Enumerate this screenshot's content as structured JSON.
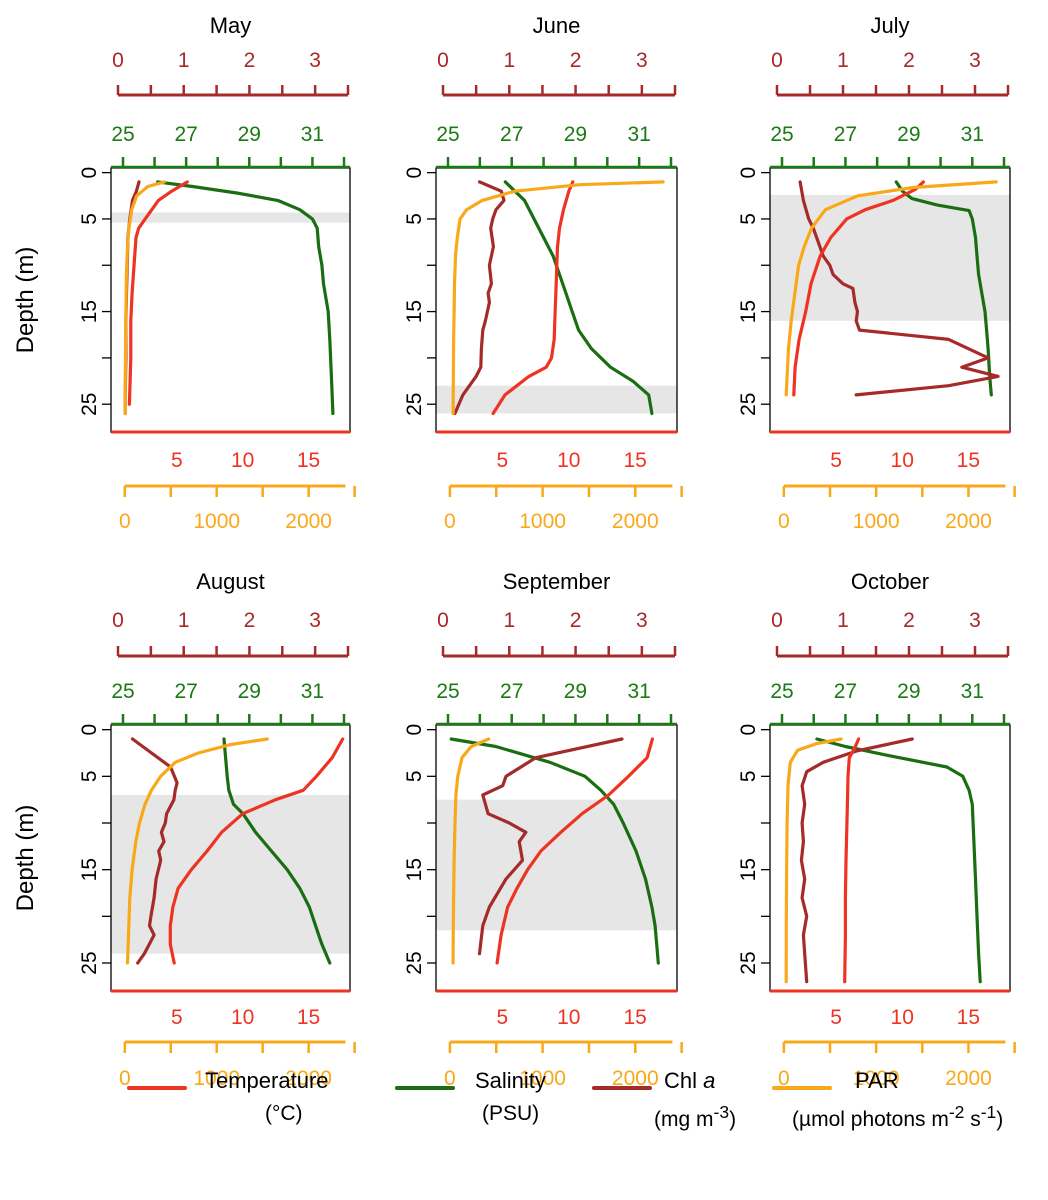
{
  "colors": {
    "temperature": "#ee3322",
    "salinity": "#1a6e12",
    "chl": "#a52a2a",
    "par": "#f9a81a",
    "shade": "#e6e6e6",
    "salinity_axis": "#1a7a14"
  },
  "y_axis": {
    "label": "Depth (m)",
    "ticks": [
      "0",
      "5",
      "15",
      "25"
    ],
    "tick_values": [
      0,
      5,
      15,
      25
    ],
    "minor_tick_values": [
      10,
      20
    ],
    "range": [
      -0.5,
      28
    ]
  },
  "axes": {
    "chl": {
      "ticks": [
        "0",
        "1",
        "2",
        "3"
      ],
      "tick_values": [
        0,
        1,
        2,
        3
      ],
      "minor_tick_values": [
        0.5,
        1.5,
        2.5,
        3.5
      ],
      "range": [
        0,
        3.5
      ]
    },
    "salinity": {
      "ticks": [
        "25",
        "27",
        "29",
        "31"
      ],
      "tick_values": [
        25,
        27,
        29,
        31
      ],
      "minor_tick_values": [
        26,
        28,
        30,
        32
      ],
      "range": [
        25,
        32
      ]
    },
    "temperature": {
      "ticks": [
        "5",
        "10",
        "15"
      ],
      "tick_values": [
        5,
        10,
        15
      ],
      "range": [
        0,
        18
      ]
    },
    "par": {
      "ticks": [
        "0",
        "1000",
        "2000"
      ],
      "tick_values": [
        0,
        1000,
        2000
      ],
      "minor_tick_values": [
        500,
        1500,
        2500
      ],
      "range": [
        -150,
        2450
      ]
    }
  },
  "legend": [
    {
      "key": "temperature",
      "name": "Temperature",
      "unit": "(°C)"
    },
    {
      "key": "salinity",
      "name": "Salinity",
      "unit": "(PSU)"
    },
    {
      "key": "chl",
      "name_html": "Chl <i>a</i>",
      "name": "Chl a",
      "unit_html": "(mg m<sup>-3</sup>)",
      "unit": "(mg m-3)"
    },
    {
      "key": "par",
      "name": "PAR",
      "unit_html": "(µmol photons m<sup>-2</sup> s<sup>-1</sup>)",
      "unit": "(µmol photons m-2 s-1)"
    }
  ],
  "chart_data": [
    {
      "type": "line",
      "title": "May",
      "shaded_depth": [
        4.3,
        5.4
      ],
      "series": [
        {
          "name": "Temperature",
          "key": "temperature",
          "x": [
            5.8,
            4.6,
            3.6,
            2.6,
            2.1,
            1.9,
            1.8,
            1.7,
            1.6,
            1.5,
            1.5,
            1.4
          ],
          "depth": [
            1,
            2,
            3,
            5,
            6,
            7,
            9,
            11,
            13,
            16,
            20,
            25
          ]
        },
        {
          "name": "Salinity",
          "key": "salinity",
          "x": [
            26.1,
            27.2,
            28.6,
            29.9,
            30.6,
            31.0,
            31.15,
            31.2,
            31.3,
            31.35,
            31.5,
            31.55,
            31.6,
            31.65
          ],
          "depth": [
            1,
            1.5,
            2.2,
            3,
            4,
            5,
            6,
            8,
            10,
            12,
            15,
            18,
            22,
            26
          ]
        },
        {
          "name": "Chl a",
          "key": "chl",
          "x": [
            0.32,
            0.28,
            0.22,
            0.18,
            0.15,
            0.14,
            0.13,
            0.12,
            0.12,
            0.11,
            0.11
          ],
          "depth": [
            1,
            2,
            3,
            5,
            7,
            10,
            13,
            16,
            20,
            24,
            26
          ]
        },
        {
          "name": "PAR",
          "key": "par",
          "x": [
            430,
            250,
            130,
            75,
            45,
            30,
            18,
            12,
            8,
            5,
            4
          ],
          "depth": [
            1,
            1.5,
            2.5,
            4,
            6,
            8,
            11,
            15,
            19,
            23,
            26
          ]
        }
      ]
    },
    {
      "type": "line",
      "title": "June",
      "shaded_depth": [
        23,
        26
      ],
      "series": [
        {
          "name": "Temperature",
          "key": "temperature",
          "x": [
            10.3,
            10.0,
            9.6,
            9.3,
            9.15,
            9.1,
            9.05,
            9.0,
            8.95,
            8.9,
            8.7,
            8.3,
            7.0,
            5.2,
            4.3
          ],
          "depth": [
            1,
            2,
            4,
            6,
            8,
            10,
            12,
            14,
            16,
            18,
            20,
            21,
            22,
            24,
            26
          ]
        },
        {
          "name": "Salinity",
          "key": "salinity",
          "x": [
            26.8,
            27.1,
            27.4,
            27.7,
            28.0,
            28.3,
            28.5,
            28.7,
            28.9,
            29.1,
            29.5,
            30.1,
            30.8,
            31.3,
            31.4
          ],
          "depth": [
            1,
            2,
            3,
            5,
            7,
            9,
            11,
            13,
            15,
            17,
            19,
            21,
            22.5,
            24,
            26
          ]
        },
        {
          "name": "Chl a",
          "key": "chl",
          "x": [
            0.55,
            0.88,
            0.92,
            0.8,
            0.75,
            0.72,
            0.76,
            0.7,
            0.73,
            0.68,
            0.7,
            0.64,
            0.6,
            0.58,
            0.57,
            0.5,
            0.3,
            0.18
          ],
          "depth": [
            1,
            2,
            3,
            4,
            5,
            6,
            8,
            10,
            12,
            13,
            14,
            16,
            17,
            19,
            21,
            22,
            24,
            26
          ]
        },
        {
          "name": "PAR",
          "key": "par",
          "x": [
            2300,
            1400,
            700,
            350,
            180,
            110,
            80,
            60,
            50,
            45,
            40,
            38,
            36,
            35
          ],
          "depth": [
            1,
            1.3,
            2,
            3,
            4,
            5,
            7,
            9,
            12,
            15,
            18,
            21,
            24,
            26
          ]
        }
      ]
    },
    {
      "type": "line",
      "title": "July",
      "shaded_depth": [
        2.4,
        16
      ],
      "series": [
        {
          "name": "Temperature",
          "key": "temperature",
          "x": [
            11.6,
            11.0,
            9.3,
            7.2,
            5.8,
            4.6,
            3.8,
            3.1,
            2.7,
            2.2,
            1.9,
            1.8
          ],
          "depth": [
            1,
            1.8,
            3,
            4,
            5,
            7,
            9,
            12,
            15,
            18,
            21,
            24
          ]
        },
        {
          "name": "Salinity",
          "key": "salinity",
          "x": [
            28.6,
            28.8,
            29.1,
            29.9,
            30.9,
            31.0,
            31.1,
            31.15,
            31.2,
            31.3,
            31.4,
            31.45,
            31.5,
            31.55,
            31.6
          ],
          "depth": [
            1,
            2,
            2.8,
            3.5,
            4.1,
            5,
            7,
            9,
            11,
            13,
            15,
            17,
            19,
            22,
            24
          ]
        },
        {
          "name": "Chl a",
          "key": "chl",
          "x": [
            0.35,
            0.4,
            0.48,
            0.55,
            0.65,
            0.7,
            0.8,
            0.85,
            1.0,
            1.15,
            1.18,
            1.22,
            1.2,
            1.25,
            2.6,
            3.2,
            2.8,
            3.35,
            2.6,
            1.2
          ],
          "depth": [
            1,
            3,
            5,
            6,
            8,
            9,
            10,
            11,
            12,
            12.5,
            14,
            15,
            16,
            17,
            18,
            20,
            21,
            22,
            23,
            24
          ]
        },
        {
          "name": "PAR",
          "key": "par",
          "x": [
            2300,
            1400,
            800,
            450,
            300,
            220,
            160,
            120,
            80,
            50,
            35,
            25
          ],
          "depth": [
            1,
            1.6,
            2.5,
            4,
            6,
            8,
            10,
            13,
            16,
            19,
            22,
            24
          ]
        }
      ]
    },
    {
      "type": "line",
      "title": "August",
      "shaded_depth": [
        7,
        24
      ],
      "series": [
        {
          "name": "Temperature",
          "key": "temperature",
          "x": [
            17.6,
            16.8,
            15.6,
            14.6,
            12.5,
            10.0,
            8.4,
            7.3,
            6.1,
            5.1,
            4.7,
            4.5,
            4.5,
            4.8
          ],
          "depth": [
            1,
            3,
            5,
            6.5,
            7.5,
            9,
            11,
            13,
            15,
            17,
            19,
            21,
            23,
            25
          ]
        },
        {
          "name": "Salinity",
          "key": "salinity",
          "x": [
            28.2,
            28.25,
            28.3,
            28.35,
            28.5,
            28.8,
            29.2,
            29.7,
            30.2,
            30.6,
            30.9,
            31.1,
            31.2,
            31.3,
            31.55
          ],
          "depth": [
            1,
            3,
            5,
            6.5,
            8,
            9,
            11,
            13,
            15,
            17,
            19,
            21,
            22,
            23,
            25
          ]
        },
        {
          "name": "Chl a",
          "key": "chl",
          "x": [
            0.22,
            0.8,
            0.9,
            0.87,
            0.85,
            0.74,
            0.72,
            0.66,
            0.7,
            0.62,
            0.65,
            0.58,
            0.55,
            0.5,
            0.48,
            0.55,
            0.4,
            0.3
          ],
          "depth": [
            1,
            4,
            5.7,
            6.5,
            7.5,
            9,
            10,
            11,
            12,
            13,
            14,
            16,
            18,
            20,
            21,
            22,
            24,
            25
          ]
        },
        {
          "name": "PAR",
          "key": "par",
          "x": [
            1550,
            1150,
            800,
            550,
            390,
            290,
            220,
            160,
            120,
            80,
            55,
            40,
            30
          ],
          "depth": [
            1,
            1.6,
            2.5,
            3.5,
            5,
            6.5,
            8,
            10,
            12,
            15,
            18,
            22,
            25
          ]
        }
      ]
    },
    {
      "type": "line",
      "title": "September",
      "shaded_depth": [
        7.5,
        21.5
      ],
      "series": [
        {
          "name": "Temperature",
          "key": "temperature",
          "x": [
            16.3,
            15.9,
            14.5,
            13.0,
            11.0,
            9.4,
            7.9,
            6.9,
            6.1,
            5.4,
            4.9,
            4.6
          ],
          "depth": [
            1,
            3,
            5,
            7,
            9,
            11,
            13,
            15,
            17,
            19,
            22,
            25
          ]
        },
        {
          "name": "Salinity",
          "key": "salinity",
          "x": [
            25.1,
            26.5,
            28.2,
            29.3,
            29.8,
            30.2,
            30.5,
            30.9,
            31.2,
            31.4,
            31.5,
            31.55,
            31.6
          ],
          "depth": [
            1,
            1.8,
            3.5,
            5,
            6.5,
            8,
            10,
            13,
            16,
            19,
            21,
            23,
            25
          ]
        },
        {
          "name": "Chl a",
          "key": "chl",
          "x": [
            2.7,
            1.4,
            0.95,
            0.9,
            0.6,
            0.68,
            1.0,
            1.25,
            1.15,
            1.2,
            0.95,
            0.7,
            0.6,
            0.55
          ],
          "depth": [
            1,
            3,
            5,
            6,
            7,
            9,
            10,
            11,
            12,
            14,
            16,
            19,
            21,
            24
          ]
        },
        {
          "name": "PAR",
          "key": "par",
          "x": [
            420,
            230,
            130,
            85,
            65,
            55,
            45,
            40,
            36,
            35
          ],
          "depth": [
            1,
            1.8,
            3,
            5,
            7,
            10,
            14,
            18,
            22,
            25
          ]
        }
      ]
    },
    {
      "type": "line",
      "title": "October",
      "shaded_depth": [],
      "series": [
        {
          "name": "Temperature",
          "key": "temperature",
          "x": [
            6.7,
            6.4,
            6.0,
            5.9,
            5.85,
            5.8,
            5.75,
            5.7,
            5.7,
            5.65
          ],
          "depth": [
            1,
            2,
            3,
            5,
            8,
            11,
            14,
            18,
            22,
            27
          ]
        },
        {
          "name": "Salinity",
          "key": "salinity",
          "x": [
            26.1,
            27.0,
            28.4,
            30.2,
            30.7,
            30.9,
            31.0,
            31.05,
            31.1,
            31.15,
            31.2,
            31.25
          ],
          "depth": [
            1,
            1.8,
            2.8,
            4,
            5,
            6.5,
            8,
            12,
            16,
            20,
            24,
            27
          ]
        },
        {
          "name": "Chl a",
          "key": "chl",
          "x": [
            2.05,
            1.2,
            0.7,
            0.45,
            0.38,
            0.42,
            0.38,
            0.4,
            0.37,
            0.42,
            0.38,
            0.45,
            0.4,
            0.42,
            0.45
          ],
          "depth": [
            1,
            2.3,
            3.5,
            4.5,
            6,
            8,
            10,
            12,
            14,
            16,
            18,
            20,
            22,
            24,
            27
          ]
        },
        {
          "name": "PAR",
          "key": "par",
          "x": [
            620,
            350,
            150,
            70,
            45,
            35,
            30,
            27,
            25
          ],
          "depth": [
            1,
            1.5,
            2.2,
            3.5,
            6,
            10,
            15,
            21,
            27
          ]
        }
      ]
    }
  ]
}
